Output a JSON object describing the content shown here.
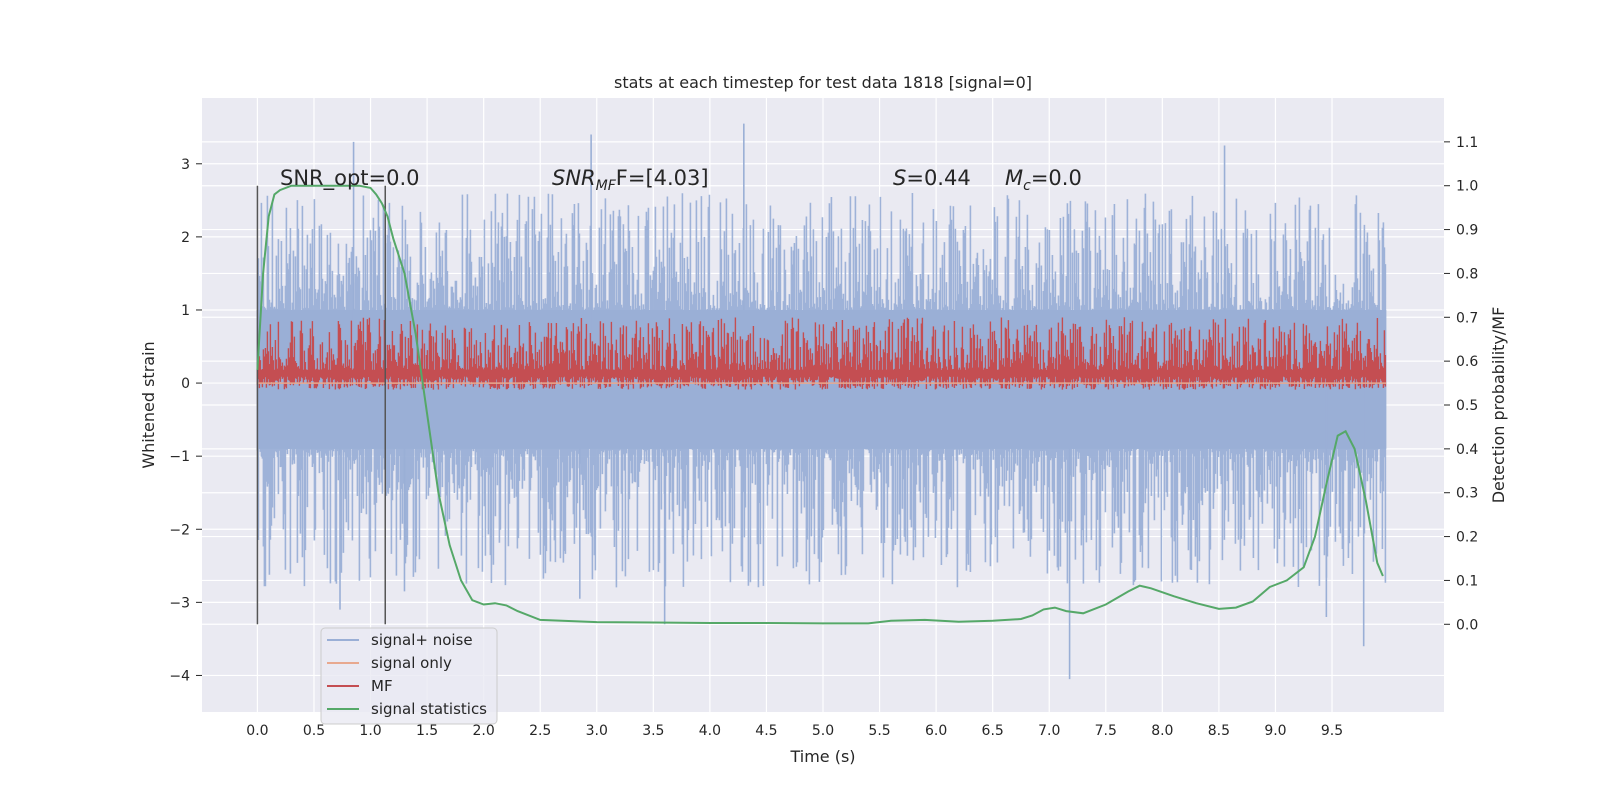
{
  "chart_data": {
    "type": "line",
    "title": "stats at each timestep for test data 1818 [signal=0]",
    "xlabel": "Time (s)",
    "ylabel": "Whitened strain",
    "y2label": "Detection probability/MF",
    "xlim": [
      -0.49,
      10.49
    ],
    "ylim": [
      -4.5,
      3.9
    ],
    "y2lim": [
      -0.2,
      1.2
    ],
    "x_ticks": [
      "0.0",
      "0.5",
      "1.0",
      "1.5",
      "2.0",
      "2.5",
      "3.0",
      "3.5",
      "4.0",
      "4.5",
      "5.0",
      "5.5",
      "6.0",
      "6.5",
      "7.0",
      "7.5",
      "8.0",
      "8.5",
      "9.0",
      "9.5"
    ],
    "y_ticks": [
      "3",
      "2",
      "1",
      "0",
      "−1",
      "−2",
      "−3",
      "−4"
    ],
    "y2_ticks": [
      "1.1",
      "1.0",
      "0.9",
      "0.8",
      "0.7",
      "0.6",
      "0.5",
      "0.4",
      "0.3",
      "0.2",
      "0.1",
      "0.0"
    ],
    "grid": true,
    "legend_position": "lower-left",
    "vlines_x": [
      0.0,
      1.13
    ],
    "annotations": {
      "snr_opt": "SNR_opt=0.0",
      "snr_mf_base": "SNR",
      "snr_mf_sub": "MF",
      "snr_mf_rest": "F=[4.03]",
      "s_value": "=0.44",
      "s_symbol": "S",
      "mc_symbol": "M",
      "mc_sub": "c",
      "mc_value": "=0.0"
    },
    "series": [
      {
        "name": "signal+ noise",
        "color": "#9aafd6",
        "axis": "left",
        "range": [
          0.0,
          9.98
        ],
        "band": [
          -0.9,
          1.0
        ],
        "peaks": [
          [
            0.85,
            3.3
          ],
          [
            2.95,
            3.4
          ],
          [
            4.3,
            3.55
          ],
          [
            8.55,
            3.25
          ],
          [
            0.73,
            -3.1
          ],
          [
            3.6,
            -3.3
          ],
          [
            7.18,
            -4.05
          ],
          [
            9.45,
            -3.2
          ],
          [
            9.78,
            -3.6
          ],
          [
            1.3,
            -2.85
          ],
          [
            2.85,
            -2.95
          ]
        ]
      },
      {
        "name": "signal only",
        "color": "#e8a98f",
        "axis": "left",
        "x": [
          0.0,
          9.98
        ],
        "y": [
          0.0,
          0.0
        ]
      },
      {
        "name": "MF",
        "color": "#c44e52",
        "axis": "right",
        "range": [
          0.0,
          9.98
        ],
        "base": 0.55,
        "amplitude": 0.15
      },
      {
        "name": "signal statistics",
        "color": "#55a868",
        "axis": "right",
        "x": [
          0.0,
          0.05,
          0.1,
          0.15,
          0.2,
          0.3,
          0.5,
          0.7,
          0.9,
          1.0,
          1.05,
          1.1,
          1.15,
          1.2,
          1.3,
          1.4,
          1.5,
          1.6,
          1.7,
          1.8,
          1.9,
          2.0,
          2.1,
          2.2,
          2.3,
          2.5,
          3.0,
          3.5,
          4.0,
          4.5,
          5.0,
          5.4,
          5.6,
          5.9,
          6.2,
          6.5,
          6.75,
          6.85,
          6.95,
          7.05,
          7.15,
          7.3,
          7.5,
          7.7,
          7.8,
          7.9,
          8.1,
          8.3,
          8.5,
          8.65,
          8.8,
          8.95,
          9.1,
          9.25,
          9.35,
          9.45,
          9.55,
          9.62,
          9.7,
          9.8,
          9.9,
          9.95
        ],
        "y": [
          0.58,
          0.8,
          0.93,
          0.98,
          0.99,
          1.0,
          1.0,
          1.0,
          1.0,
          0.995,
          0.98,
          0.96,
          0.93,
          0.88,
          0.8,
          0.66,
          0.48,
          0.3,
          0.18,
          0.1,
          0.055,
          0.045,
          0.048,
          0.043,
          0.03,
          0.01,
          0.005,
          0.004,
          0.003,
          0.003,
          0.002,
          0.002,
          0.008,
          0.01,
          0.006,
          0.008,
          0.012,
          0.02,
          0.034,
          0.038,
          0.03,
          0.025,
          0.045,
          0.075,
          0.088,
          0.082,
          0.064,
          0.048,
          0.035,
          0.038,
          0.052,
          0.085,
          0.1,
          0.13,
          0.2,
          0.32,
          0.43,
          0.44,
          0.4,
          0.28,
          0.14,
          0.11
        ]
      }
    ]
  }
}
